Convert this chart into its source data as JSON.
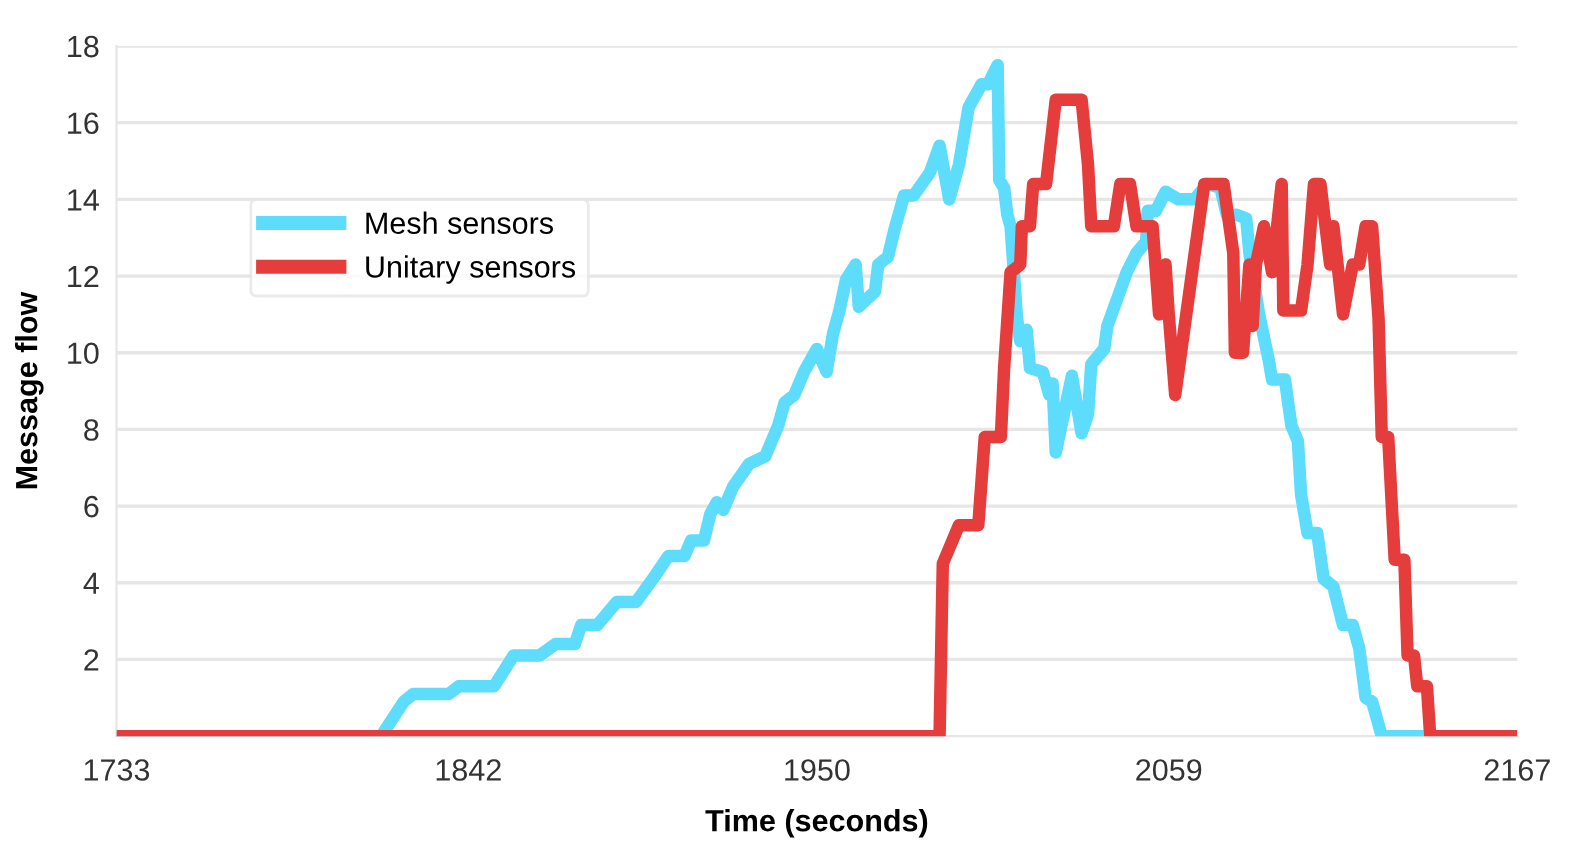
{
  "chart_data": {
    "type": "line",
    "xlabel": "Time (seconds)",
    "ylabel": "Message flow",
    "xlim": [
      1733,
      2167
    ],
    "xticks": [
      1733,
      1842,
      1950,
      2059,
      2167
    ],
    "ylim": [
      0,
      18
    ],
    "yticks": [
      2,
      4,
      6,
      8,
      10,
      12,
      14,
      16,
      18
    ],
    "grid": "y",
    "legend": "top left",
    "marker": "none",
    "line_style": "solid",
    "series": [
      {
        "name": "Mesh sensors",
        "color": "#5ddcfc",
        "x": [
          1733,
          1815,
          1822,
          1825,
          1836,
          1839,
          1850,
          1856,
          1864,
          1869,
          1875,
          1877,
          1882,
          1888,
          1894,
          1900,
          1904,
          1909,
          1911,
          1915,
          1917,
          1919,
          1921,
          1924,
          1929,
          1934,
          1938,
          1940,
          1943,
          1946,
          1950,
          1953,
          1955,
          1957,
          1959,
          1962,
          1963,
          1968,
          1969,
          1972,
          1974,
          1977,
          1980,
          1985,
          1988,
          1991,
          1994,
          1997,
          2001,
          2003,
          2006,
          2006.5,
          2008,
          2009,
          2010,
          2012,
          2013,
          2015,
          2016,
          2020,
          2022,
          2023,
          2024,
          2029,
          2032,
          2034,
          2035,
          2039,
          2040,
          2043,
          2046,
          2049,
          2052,
          2052.5,
          2055,
          2058,
          2062,
          2067,
          2071,
          2075,
          2077,
          2080,
          2083,
          2084,
          2087,
          2090,
          2091,
          2095,
          2097,
          2099,
          2100,
          2102,
          2105,
          2107,
          2110,
          2113,
          2116,
          2118,
          2120,
          2122,
          2125,
          2138
        ],
        "values": [
          0,
          0,
          0.9,
          1.1,
          1.1,
          1.3,
          1.3,
          2.1,
          2.1,
          2.4,
          2.4,
          2.9,
          2.9,
          3.5,
          3.5,
          4.2,
          4.7,
          4.7,
          5.1,
          5.1,
          5.8,
          6.1,
          5.9,
          6.5,
          7.1,
          7.3,
          8.1,
          8.7,
          8.9,
          9.5,
          10.1,
          9.5,
          10.5,
          11.1,
          11.9,
          12.3,
          11.2,
          11.6,
          12.3,
          12.5,
          13.2,
          14.1,
          14.1,
          14.7,
          15.4,
          14.0,
          14.9,
          16.4,
          17.0,
          17.0,
          17.5,
          14.5,
          14.3,
          13.6,
          13.3,
          10.9,
          10.3,
          10.6,
          9.6,
          9.5,
          8.9,
          9.2,
          7.4,
          9.4,
          7.9,
          8.4,
          9.7,
          10.1,
          10.7,
          11.4,
          12.1,
          12.6,
          12.9,
          13.7,
          13.7,
          14.2,
          14.0,
          14.0,
          14.4,
          14.3,
          13.6,
          13.6,
          13.5,
          12.6,
          11.0,
          9.8,
          9.3,
          9.3,
          8.1,
          7.7,
          6.3,
          5.3,
          5.3,
          4.1,
          3.9,
          2.9,
          2.9,
          2.3,
          1.0,
          0.9,
          0,
          0
        ]
      },
      {
        "name": "Unitary sensors",
        "color": "#e43d3b",
        "x": [
          1733,
          1988,
          1989,
          1994,
          2000,
          2002,
          2007,
          2008,
          2010,
          2013,
          2013.5,
          2016,
          2017,
          2021,
          2024,
          2032,
          2034,
          2035,
          2042,
          2044,
          2047,
          2049,
          2054,
          2056,
          2058,
          2059,
          2061,
          2070,
          2076,
          2079,
          2079.5,
          2082,
          2084,
          2085,
          2086,
          2088.5,
          2091,
          2094,
          2094.5,
          2100,
          2102,
          2104,
          2106,
          2109,
          2110,
          2113,
          2116,
          2118,
          2120,
          2122,
          2124,
          2125,
          2127,
          2129,
          2132,
          2133,
          2135,
          2136,
          2139,
          2140,
          2167
        ],
        "values": [
          0,
          0,
          4.5,
          5.5,
          5.5,
          7.8,
          7.8,
          9.6,
          12.1,
          12.3,
          13.3,
          13.3,
          14.4,
          14.4,
          16.6,
          16.6,
          14.9,
          13.3,
          13.3,
          14.4,
          14.4,
          13.3,
          13.3,
          11.0,
          12.3,
          11.0,
          8.9,
          14.4,
          14.4,
          12.6,
          10.0,
          10.0,
          12.3,
          10.7,
          12.3,
          13.3,
          12.1,
          14.4,
          11.1,
          11.1,
          12.3,
          14.4,
          14.4,
          12.3,
          13.3,
          11.0,
          12.3,
          12.3,
          13.3,
          13.3,
          10.9,
          7.8,
          7.8,
          4.6,
          4.6,
          2.1,
          2.1,
          1.3,
          1.3,
          0,
          0
        ]
      }
    ]
  }
}
